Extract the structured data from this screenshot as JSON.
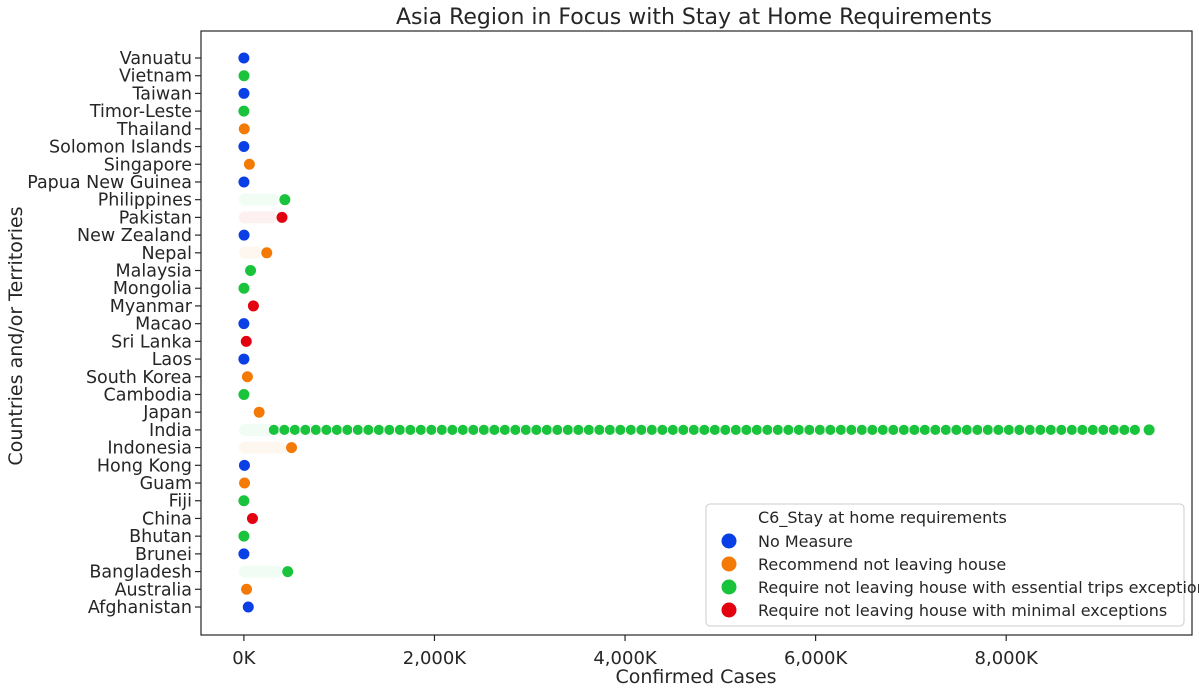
{
  "chart_data": {
    "type": "scatter",
    "title": "Asia Region in Focus with Stay at Home Requirements",
    "xlabel": "Confirmed Cases",
    "ylabel": "Countries and/or Territories",
    "xlim": [
      -450000,
      9950000
    ],
    "x_ticks": [
      0,
      2000000,
      4000000,
      6000000,
      8000000
    ],
    "x_tick_labels": [
      "0K",
      "2,000K",
      "4,000K",
      "6,000K",
      "8,000K"
    ],
    "grid": false,
    "legend_position": "lower-right",
    "legend_title": "C6_Stay at home requirements",
    "series": [
      {
        "name": "No Measure",
        "color": "#0a3fe6"
      },
      {
        "name": "Recommend not leaving house",
        "color": "#f47a08"
      },
      {
        "name": "Require not leaving house with essential trips exceptions",
        "color": "#19c43c"
      },
      {
        "name": "Require not leaving house with minimal exceptions",
        "color": "#e3000f"
      }
    ],
    "categories": [
      "Vanuatu",
      "Vietnam",
      "Taiwan",
      "Timor-Leste",
      "Thailand",
      "Solomon Islands",
      "Singapore",
      "Papua New Guinea",
      "Philippines",
      "Pakistan",
      "New Zealand",
      "Nepal",
      "Malaysia",
      "Mongolia",
      "Myanmar",
      "Macao",
      "Sri Lanka",
      "Laos",
      "South Korea",
      "Cambodia",
      "Japan",
      "India",
      "Indonesia",
      "Hong Kong",
      "Guam",
      "Fiji",
      "China",
      "Bhutan",
      "Brunei",
      "Bangladesh",
      "Australia",
      "Afghanistan"
    ],
    "points": [
      {
        "country": "Vanuatu",
        "x": 1,
        "series": 0
      },
      {
        "country": "Vietnam",
        "x": 1400,
        "series": 2
      },
      {
        "country": "Taiwan",
        "x": 700,
        "series": 0
      },
      {
        "country": "Timor-Leste",
        "x": 30,
        "series": 2
      },
      {
        "country": "Thailand",
        "x": 4200,
        "series": 1
      },
      {
        "country": "Solomon Islands",
        "x": 17,
        "series": 0
      },
      {
        "country": "Singapore",
        "x": 58000,
        "series": 1
      },
      {
        "country": "Papua New Guinea",
        "x": 700,
        "series": 0
      },
      {
        "country": "Philippines",
        "x": 430000,
        "series": 2
      },
      {
        "country": "Pakistan",
        "x": 400000,
        "series": 3
      },
      {
        "country": "New Zealand",
        "x": 2000,
        "series": 0
      },
      {
        "country": "Nepal",
        "x": 240000,
        "series": 1
      },
      {
        "country": "Malaysia",
        "x": 70000,
        "series": 2
      },
      {
        "country": "Mongolia",
        "x": 1000,
        "series": 2
      },
      {
        "country": "Myanmar",
        "x": 100000,
        "series": 3
      },
      {
        "country": "Macao",
        "x": 46,
        "series": 0
      },
      {
        "country": "Sri Lanka",
        "x": 25000,
        "series": 3
      },
      {
        "country": "Laos",
        "x": 40,
        "series": 0
      },
      {
        "country": "South Korea",
        "x": 37000,
        "series": 1
      },
      {
        "country": "Cambodia",
        "x": 340,
        "series": 2
      },
      {
        "country": "Japan",
        "x": 160000,
        "series": 1
      },
      {
        "country": "India",
        "x": 9500000,
        "series": 2
      },
      {
        "country": "Indonesia",
        "x": 500000,
        "series": 1
      },
      {
        "country": "Hong Kong",
        "x": 6000,
        "series": 0
      },
      {
        "country": "Guam",
        "x": 7000,
        "series": 1
      },
      {
        "country": "Fiji",
        "x": 40,
        "series": 2
      },
      {
        "country": "China",
        "x": 90000,
        "series": 3
      },
      {
        "country": "Bhutan",
        "x": 400,
        "series": 2
      },
      {
        "country": "Brunei",
        "x": 150,
        "series": 0
      },
      {
        "country": "Bangladesh",
        "x": 460000,
        "series": 2
      },
      {
        "country": "Australia",
        "x": 28000,
        "series": 1
      },
      {
        "country": "Afghanistan",
        "x": 46000,
        "series": 0
      }
    ]
  }
}
